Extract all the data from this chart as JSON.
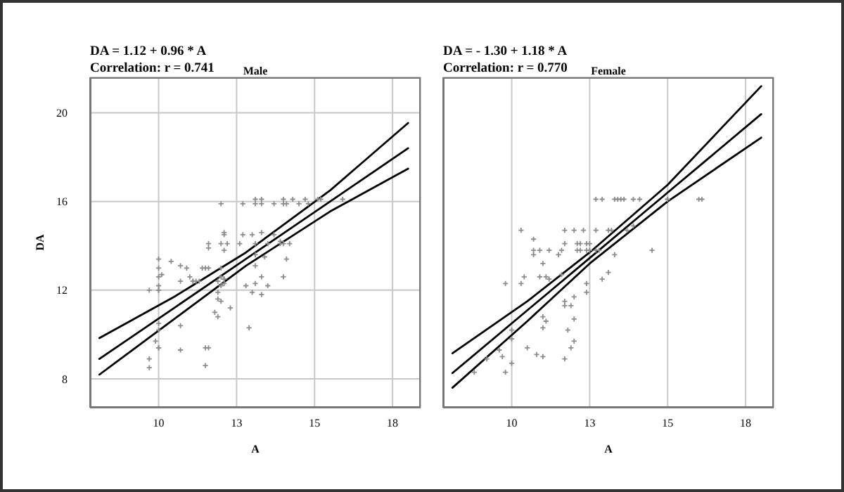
{
  "chart_data": [
    {
      "type": "scatter",
      "title": "Male",
      "annotations": [
        "DA = 1.12 + 0.96 * A",
        "Correlation: r = 0.741"
      ],
      "xlabel": "A",
      "ylabel": "DA",
      "xlim": [
        7.8,
        18.4
      ],
      "ylim": [
        6.7,
        21.6
      ],
      "xticks": [
        {
          "value": 10,
          "label": "10"
        },
        {
          "value": 12.5,
          "label": "13"
        },
        {
          "value": 15,
          "label": "15"
        },
        {
          "value": 17.5,
          "label": "18"
        }
      ],
      "yticks": [
        8,
        12,
        16,
        20
      ],
      "grid": true,
      "series": [
        {
          "marker": "cross",
          "color": "#8c8c8c",
          "x": [
            12.0,
            12.7,
            13.1,
            13.1,
            13.3,
            13.3,
            13.7,
            14.0,
            14.0,
            14.1,
            14.3,
            14.5,
            14.7,
            14.8,
            15.1,
            15.2,
            15.9,
            12.1,
            12.1,
            12.7,
            13.0,
            13.3,
            13.7,
            13.9,
            11.6,
            12.0,
            12.2,
            12.6,
            13.1,
            13.5,
            13.9,
            14.0,
            14.2,
            11.6,
            12.1,
            13.1,
            13.4,
            14.1,
            10.4,
            10.7,
            10.0,
            10.0,
            13.1,
            10.9,
            11.4,
            11.5,
            11.6,
            12.0,
            10.0,
            10.1,
            12.0,
            12.1,
            11.0,
            11.1,
            11.3,
            11.9,
            12.1,
            10.7,
            11.1,
            11.2,
            13.3,
            14.0,
            9.7,
            10.0,
            10.0,
            10.0,
            12.0,
            12.1,
            12.8,
            13.1,
            13.5,
            13.0,
            13.3,
            11.9,
            11.9,
            12.0,
            11.8,
            11.9,
            12.3,
            10.7,
            10.0,
            10.0,
            12.9,
            9.9,
            10.0,
            10.0,
            10.7,
            11.5,
            11.6,
            9.7,
            9.7,
            11.5
          ],
          "values": [
            15.9,
            15.9,
            16.1,
            15.9,
            16.1,
            15.9,
            15.9,
            16.1,
            15.9,
            15.9,
            16.1,
            15.9,
            16.1,
            15.9,
            16.1,
            16.1,
            16.1,
            14.6,
            14.5,
            14.5,
            14.5,
            14.6,
            14.5,
            14.2,
            14.1,
            14.1,
            14.1,
            14.1,
            14.1,
            14.1,
            14.1,
            14.1,
            14.1,
            13.9,
            13.8,
            13.6,
            13.5,
            13.4,
            13.3,
            13.1,
            13.4,
            13.0,
            13.1,
            13.0,
            13.0,
            13.0,
            13.0,
            13.0,
            12.6,
            12.7,
            12.6,
            12.5,
            12.6,
            12.4,
            12.4,
            12.4,
            12.5,
            12.4,
            12.4,
            12.4,
            12.6,
            12.6,
            12.0,
            12.0,
            12.2,
            12.0,
            12.2,
            12.3,
            12.2,
            12.3,
            12.2,
            11.9,
            11.8,
            11.9,
            11.6,
            11.5,
            11.0,
            10.8,
            11.2,
            10.4,
            10.5,
            10.2,
            10.3,
            9.7,
            9.4,
            9.4,
            9.3,
            9.4,
            9.4,
            8.9,
            8.5,
            8.6
          ]
        },
        {
          "type": "line",
          "color": "#000000",
          "x": [
            8.1,
            10.5,
            12.8,
            15.5,
            18.0
          ],
          "values": [
            9.84,
            11.7,
            13.7,
            16.5,
            19.54
          ]
        },
        {
          "type": "line",
          "color": "#000000",
          "x": [
            8.1,
            10.5,
            12.8,
            15.5,
            18.0
          ],
          "values": [
            8.9,
            11.2,
            13.41,
            16.0,
            18.4
          ]
        },
        {
          "type": "line",
          "color": "#000000",
          "x": [
            8.1,
            10.5,
            12.8,
            15.5,
            18.0
          ],
          "values": [
            8.19,
            10.7,
            13.1,
            15.55,
            17.48
          ]
        }
      ]
    },
    {
      "type": "scatter",
      "title": "Female",
      "annotations": [
        "DA = - 1.30 + 1.18 * A",
        "Correlation: r = 0.770"
      ],
      "xlabel": "A",
      "xlim": [
        7.8,
        18.4
      ],
      "ylim": [
        6.7,
        21.6
      ],
      "tick_labels": "x",
      "xticks": [
        {
          "value": 10,
          "label": "10"
        },
        {
          "value": 12.5,
          "label": "13"
        },
        {
          "value": 15,
          "label": "15"
        },
        {
          "value": 17.5,
          "label": "18"
        }
      ],
      "yticks": [
        8,
        12,
        16,
        20
      ],
      "grid": true,
      "series": [
        {
          "marker": "cross",
          "color": "#8c8c8c",
          "x": [
            12.7,
            12.9,
            13.3,
            13.4,
            13.5,
            13.6,
            13.9,
            14.1,
            15.0,
            15.0,
            16.0,
            16.1,
            10.3,
            11.7,
            12.0,
            12.3,
            12.7,
            13.1,
            13.2,
            13.7,
            13.9,
            10.7,
            11.7,
            12.1,
            12.2,
            12.4,
            12.5,
            10.7,
            10.9,
            11.2,
            11.6,
            12.1,
            12.2,
            12.4,
            12.5,
            12.7,
            12.8,
            10.7,
            11.5,
            13.3,
            14.5,
            11.0,
            13.1,
            10.4,
            10.9,
            11.1,
            11.2,
            11.6,
            12.9,
            9.8,
            10.3,
            12.4,
            12.4,
            12.0,
            11.7,
            11.7,
            11.9,
            11.0,
            11.1,
            11.0,
            12.0,
            11.8,
            10.0,
            10.0,
            10.5,
            10.8,
            11.0,
            11.7,
            11.9,
            12.0,
            9.6,
            9.7,
            9.2,
            8.8,
            9.8,
            10.0
          ],
          "values": [
            16.1,
            16.1,
            16.1,
            16.1,
            16.1,
            16.1,
            16.1,
            16.1,
            16.1,
            16.1,
            16.1,
            16.1,
            14.7,
            14.7,
            14.7,
            14.7,
            14.7,
            14.7,
            14.7,
            14.7,
            14.9,
            14.3,
            14.1,
            14.1,
            14.1,
            14.1,
            14.1,
            13.8,
            13.8,
            13.8,
            13.8,
            13.8,
            13.8,
            13.8,
            13.8,
            13.8,
            13.8,
            13.6,
            13.6,
            13.6,
            13.8,
            13.2,
            12.8,
            12.6,
            12.6,
            12.6,
            12.5,
            12.7,
            12.5,
            12.3,
            12.3,
            12.3,
            11.9,
            11.7,
            11.5,
            11.3,
            11.3,
            10.8,
            10.6,
            10.3,
            10.7,
            10.2,
            10.2,
            9.8,
            9.4,
            9.1,
            9.0,
            8.9,
            9.4,
            9.7,
            9.3,
            9.0,
            8.9,
            8.3,
            8.3,
            8.7
          ]
        },
        {
          "type": "line",
          "color": "#000000",
          "x": [
            8.1,
            10.5,
            12.5,
            15.0,
            18.0
          ],
          "values": [
            9.15,
            11.5,
            13.7,
            16.75,
            21.2
          ]
        },
        {
          "type": "line",
          "color": "#000000",
          "x": [
            8.1,
            10.5,
            12.5,
            15.0,
            18.0
          ],
          "values": [
            8.26,
            11.09,
            13.45,
            16.4,
            19.94
          ]
        },
        {
          "type": "line",
          "color": "#000000",
          "x": [
            8.1,
            10.5,
            12.5,
            15.0,
            18.0
          ],
          "values": [
            7.6,
            10.6,
            13.2,
            16.0,
            18.88
          ]
        }
      ]
    }
  ]
}
